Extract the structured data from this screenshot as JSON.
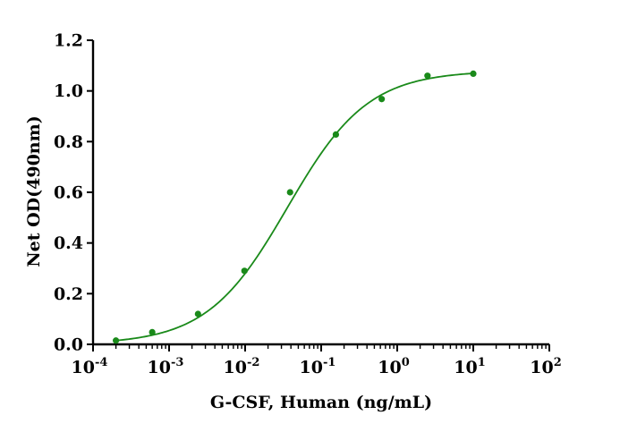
{
  "chart_data": {
    "type": "scatter",
    "title": "",
    "xlabel": "G-CSF, Human (ng/mL)",
    "ylabel": "Net OD(490nm)",
    "xscale": "log",
    "xlim": [
      0.0001,
      100
    ],
    "ylim": [
      0,
      1.2
    ],
    "x_ticks": [
      0.0001,
      0.001,
      0.01,
      0.1,
      1,
      10,
      100
    ],
    "x_tick_labels": [
      {
        "base": "10",
        "exp": "-4"
      },
      {
        "base": "10",
        "exp": "-3"
      },
      {
        "base": "10",
        "exp": "-2"
      },
      {
        "base": "10",
        "exp": "-1"
      },
      {
        "base": "10",
        "exp": "0"
      },
      {
        "base": "10",
        "exp": "1"
      },
      {
        "base": "10",
        "exp": "2"
      }
    ],
    "y_ticks": [
      0,
      0.2,
      0.4,
      0.6,
      0.8,
      1.0,
      1.2
    ],
    "y_tick_labels": [
      "0.0",
      "0.2",
      "0.4",
      "0.6",
      "0.8",
      "1.0",
      "1.2"
    ],
    "grid": false,
    "legend": "none",
    "color": "#1a8a1a",
    "series": [
      {
        "x": [
          0.0002,
          0.0006,
          0.0024,
          0.0098,
          0.039,
          0.156,
          0.625,
          2.5,
          10
        ],
        "y": [
          0.015,
          0.048,
          0.12,
          0.29,
          0.6,
          0.828,
          0.968,
          1.06,
          1.068
        ]
      }
    ],
    "fit": {
      "type": "4PL",
      "bottom": 0.0,
      "top": 1.08,
      "ec50": 0.036,
      "hill": 0.82
    }
  }
}
